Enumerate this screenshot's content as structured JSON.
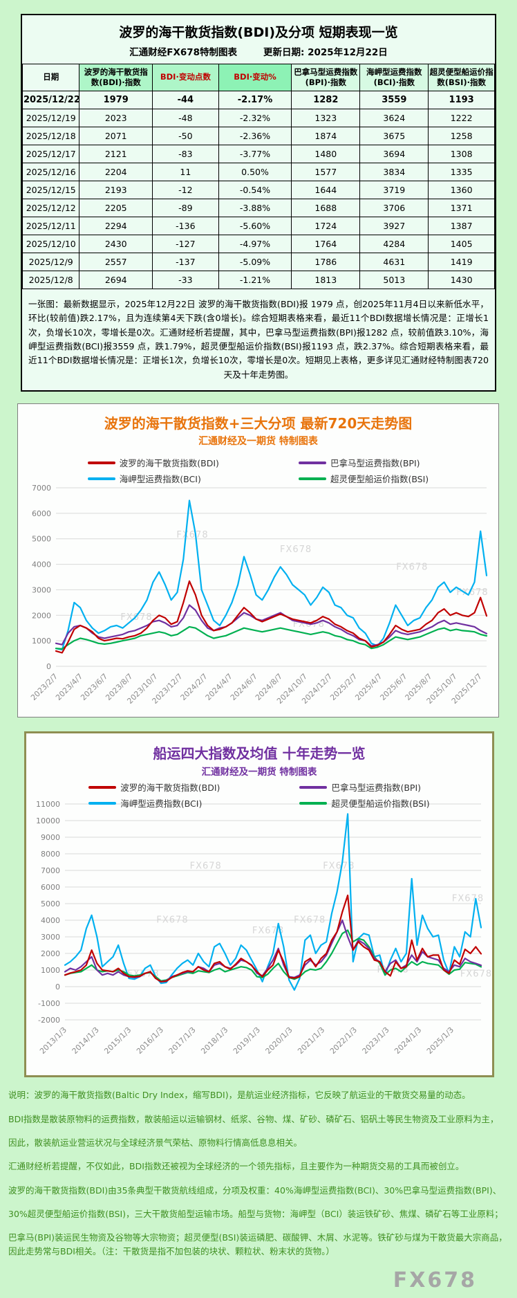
{
  "page": {
    "watermark": "FX678"
  },
  "report": {
    "title": "波罗的海干散货指数(BDI)及分项  短期表现一览",
    "source": "汇通财经FX678特制图表",
    "update_date": "更新日期: 2025年12月22日",
    "columns": [
      "日期",
      "波罗的海干散货指数(BDI)·指数",
      "BDI·变动点数",
      "BDI·变动%",
      "巴拿马型运费指数(BPI)·指数",
      "海岬型运费指数(BCI)·指数",
      "超灵便型船运价指数(BSI)·指数"
    ],
    "rows": [
      [
        "2025/12/22",
        "1979",
        "-44",
        "-2.17%",
        "1282",
        "3559",
        "1193"
      ],
      [
        "2025/12/19",
        "2023",
        "-48",
        "-2.32%",
        "1323",
        "3624",
        "1222"
      ],
      [
        "2025/12/18",
        "2071",
        "-50",
        "-2.36%",
        "1874",
        "3675",
        "1258"
      ],
      [
        "2025/12/17",
        "2121",
        "-83",
        "-3.77%",
        "1480",
        "3694",
        "1308"
      ],
      [
        "2025/12/16",
        "2204",
        "11",
        "0.50%",
        "1577",
        "3834",
        "1335"
      ],
      [
        "2025/12/15",
        "2193",
        "-12",
        "-0.54%",
        "1644",
        "3719",
        "1360"
      ],
      [
        "2025/12/12",
        "2205",
        "-89",
        "-3.88%",
        "1688",
        "3706",
        "1371"
      ],
      [
        "2025/12/11",
        "2294",
        "-136",
        "-5.60%",
        "1724",
        "3927",
        "1387"
      ],
      [
        "2025/12/10",
        "2430",
        "-127",
        "-4.97%",
        "1764",
        "4284",
        "1405"
      ],
      [
        "2025/12/9",
        "2557",
        "-137",
        "-5.09%",
        "1786",
        "4631",
        "1419"
      ],
      [
        "2025/12/8",
        "2694",
        "-33",
        "-1.21%",
        "1813",
        "5013",
        "1430"
      ]
    ],
    "summary": "一张图：最新数据显示，2025年12月22日 波罗的海干散货指数(BDI)报 1979 点，创2025年11月4日以来新低水平，环比(较前值)跌2.17%，且为连续第4天下跌(含0增长)。综合短期表格来看，最近11个BDI数据增长情况是：正增长1次，负增长10次，零增长是0次。汇通财经析若提醒，其中，巴拿马型运费指数(BPI)报1282 点，较前值跌3.10%，海岬型运费指数(BCI)报3559 点，跌1.79%，超灵便型船运价指数(BSI)报1193 点，跌2.37%。综合短期表格来看，最近11个BDI数据增长情况是：正增长1次，负增长10次，零增长是0次。短期见上表格，更多详见汇通财经特制图表720天及十年走势图。"
  },
  "chart_data": [
    {
      "type": "line",
      "title": "波罗的海干散货指数+三大分项  最新720天走势图",
      "subtitle": "汇通财经及一期货  特制图表",
      "ylim": [
        0,
        7000
      ],
      "ystep": 1000,
      "grid": true,
      "legend_position": "top-center",
      "x_tick_span": 0.985,
      "x_ticks": [
        "2023/2/7",
        "2023/4/7",
        "2023/6/7",
        "2023/8/7",
        "2023/10/7",
        "2023/12/7",
        "2024/2/7",
        "2024/4/7",
        "2024/6/7",
        "2024/8/7",
        "2024/10/7",
        "2024/12/7",
        "2025/2/7",
        "2025/4/7",
        "2025/6/7",
        "2025/8/7",
        "2025/10/7",
        "2025/12/7"
      ],
      "watermarks": [
        [
          0.28,
          0.28
        ],
        [
          0.52,
          0.36
        ],
        [
          0.79,
          0.46
        ],
        [
          0.15,
          0.74
        ],
        [
          0.55,
          0.78
        ],
        [
          0.93,
          0.6
        ]
      ],
      "series": [
        {
          "name": "波罗的海干散货指数(BDI)",
          "code": "BDI",
          "color": "#c00000",
          "values": [
            600,
            530,
            950,
            1450,
            1600,
            1500,
            1350,
            1100,
            1000,
            1050,
            1100,
            1080,
            1150,
            1200,
            1300,
            1500,
            1800,
            2000,
            1900,
            1650,
            1750,
            2500,
            3340,
            2800,
            2000,
            1600,
            1400,
            1450,
            1550,
            1700,
            2000,
            2300,
            2100,
            1850,
            1750,
            1850,
            1950,
            2050,
            1950,
            1850,
            1800,
            1750,
            1700,
            1800,
            1950,
            1850,
            1650,
            1550,
            1400,
            1300,
            1100,
            1000,
            760,
            820,
            950,
            1250,
            1600,
            1450,
            1350,
            1400,
            1450,
            1650,
            1800,
            2100,
            2250,
            2000,
            2100,
            2000,
            1950,
            2100,
            2694,
            1979
          ]
        },
        {
          "name": "巴拿马型运费指数(BPI)",
          "code": "BPI",
          "color": "#7030a0",
          "values": [
            900,
            850,
            1300,
            1550,
            1600,
            1500,
            1300,
            1150,
            1100,
            1150,
            1200,
            1250,
            1350,
            1400,
            1500,
            1600,
            1750,
            1800,
            1700,
            1550,
            1600,
            1900,
            2400,
            2200,
            1800,
            1500,
            1400,
            1500,
            1550,
            1700,
            1900,
            2100,
            2000,
            1850,
            1800,
            1900,
            2000,
            2100,
            1950,
            1800,
            1750,
            1700,
            1650,
            1700,
            1800,
            1700,
            1550,
            1450,
            1300,
            1200,
            1050,
            1000,
            800,
            850,
            950,
            1150,
            1400,
            1300,
            1250,
            1300,
            1350,
            1450,
            1550,
            1700,
            1800,
            1650,
            1700,
            1650,
            1600,
            1550,
            1400,
            1282
          ]
        },
        {
          "name": "海岬型运费指数(BCI)",
          "code": "BCI",
          "color": "#00b0f0",
          "values": [
            700,
            650,
            1400,
            2500,
            2300,
            1800,
            1500,
            1300,
            1400,
            1550,
            1600,
            1500,
            1700,
            1900,
            2200,
            2600,
            3300,
            3700,
            3200,
            2600,
            2900,
            4200,
            6500,
            5200,
            3000,
            2400,
            1800,
            1600,
            2000,
            2500,
            3200,
            4300,
            3600,
            2800,
            2600,
            3000,
            3500,
            3900,
            3600,
            3200,
            3000,
            2800,
            2400,
            2700,
            3100,
            2900,
            2400,
            2300,
            2000,
            1900,
            1500,
            1300,
            900,
            800,
            1100,
            1700,
            2400,
            2000,
            1600,
            1800,
            1900,
            2300,
            2600,
            3100,
            3300,
            2900,
            3100,
            2950,
            2800,
            3300,
            5300,
            3559
          ]
        },
        {
          "name": "超灵便型船运价指数(BSI)",
          "code": "BSI",
          "color": "#00b050",
          "values": [
            700,
            680,
            850,
            1000,
            1100,
            1050,
            980,
            900,
            870,
            900,
            950,
            1000,
            1050,
            1100,
            1200,
            1250,
            1300,
            1350,
            1300,
            1200,
            1250,
            1400,
            1550,
            1500,
            1350,
            1200,
            1100,
            1150,
            1200,
            1300,
            1400,
            1500,
            1450,
            1400,
            1350,
            1400,
            1450,
            1500,
            1450,
            1400,
            1350,
            1300,
            1250,
            1300,
            1350,
            1300,
            1200,
            1150,
            1050,
            1000,
            900,
            850,
            700,
            750,
            850,
            1000,
            1150,
            1100,
            1050,
            1100,
            1150,
            1250,
            1350,
            1450,
            1500,
            1400,
            1450,
            1400,
            1380,
            1350,
            1250,
            1193
          ]
        }
      ]
    },
    {
      "type": "line",
      "title": "船运四大指数及均值 十年走势一览",
      "subtitle": "汇通财经及一期货 特制图表",
      "ylim": [
        -2000,
        11000
      ],
      "ystep": 1000,
      "grid": true,
      "legend_position": "top-center",
      "x_tick_span": 0.93,
      "x_ticks": [
        "2013/1/3",
        "2014/1/3",
        "2015/1/3",
        "2016/1/3",
        "2017/1/3",
        "2018/1/3",
        "2019/1/3",
        "2020/1/3",
        "2021/1/3",
        "2022/1/3",
        "2023/1/3",
        "2024/1/3",
        "2025/1/3"
      ],
      "watermarks": [
        [
          0.3,
          0.3
        ],
        [
          0.62,
          0.3
        ],
        [
          0.22,
          0.55
        ],
        [
          0.45,
          0.6
        ],
        [
          0.55,
          0.55
        ],
        [
          0.93,
          0.45
        ],
        [
          0.15,
          0.8
        ],
        [
          0.75,
          0.78
        ],
        [
          0.95,
          0.8
        ]
      ],
      "series": [
        {
          "name": "波罗的海干散货指数(BDI)",
          "code": "BDI",
          "color": "#c00000",
          "values": [
            700,
            820,
            900,
            1000,
            1300,
            2200,
            1400,
            1000,
            950,
            900,
            1100,
            800,
            600,
            590,
            630,
            800,
            900,
            500,
            300,
            330,
            550,
            700,
            850,
            950,
            900,
            1200,
            1000,
            900,
            1400,
            1500,
            1200,
            1050,
            1350,
            1700,
            1500,
            1270,
            900,
            600,
            1000,
            1300,
            2200,
            1500,
            550,
            520,
            600,
            1500,
            1700,
            1200,
            1700,
            2000,
            2800,
            3300,
            4500,
            5500,
            2200,
            2700,
            2400,
            2200,
            1600,
            1500,
            900,
            650,
            1500,
            1100,
            1200,
            2800,
            1600,
            2300,
            1800,
            1900,
            1900,
            1000,
            800,
            1600,
            1350,
            2250,
            2000,
            2400,
            1979
          ]
        },
        {
          "name": "巴拿马型运费指数(BPI)",
          "code": "BPI",
          "color": "#7030a0",
          "values": [
            900,
            1100,
            1000,
            1200,
            1500,
            1800,
            1000,
            700,
            800,
            700,
            900,
            700,
            600,
            550,
            600,
            800,
            900,
            500,
            300,
            350,
            600,
            700,
            800,
            900,
            900,
            1200,
            1100,
            900,
            1300,
            1400,
            1200,
            1100,
            1300,
            1600,
            1500,
            1300,
            800,
            650,
            1100,
            1600,
            2300,
            1300,
            600,
            550,
            700,
            1300,
            1600,
            1300,
            1500,
            1900,
            2600,
            3300,
            4000,
            3000,
            2200,
            2800,
            2600,
            2300,
            1700,
            1500,
            900,
            1400,
            1600,
            1100,
            1300,
            1900,
            1500,
            2100,
            1800,
            1700,
            1600,
            1100,
            900,
            1300,
            1200,
            1700,
            1500,
            1400,
            1282
          ]
        },
        {
          "name": "海岬型运费指数(BCI)",
          "code": "BCI",
          "color": "#00b0f0",
          "values": [
            1300,
            1500,
            1800,
            2200,
            3500,
            4300,
            3000,
            1200,
            1500,
            1800,
            2500,
            1400,
            500,
            450,
            600,
            1100,
            1300,
            600,
            200,
            250,
            700,
            1100,
            1400,
            1600,
            1300,
            2000,
            1500,
            1200,
            2400,
            2600,
            2000,
            1300,
            1700,
            2500,
            2200,
            1600,
            1000,
            300,
            1200,
            2000,
            3800,
            2400,
            400,
            -200,
            500,
            2800,
            3100,
            2000,
            2500,
            2700,
            4400,
            5700,
            7500,
            10400,
            1500,
            2900,
            3200,
            3100,
            1800,
            1900,
            700,
            1600,
            2300,
            1500,
            2000,
            6500,
            2500,
            4300,
            3500,
            3000,
            3100,
            1600,
            800,
            2400,
            1800,
            3300,
            3000,
            5300,
            3559
          ]
        },
        {
          "name": "超灵便型船运价指数(BSI)",
          "code": "BSI",
          "color": "#00b050",
          "values": [
            700,
            800,
            850,
            900,
            1100,
            1300,
            1000,
            900,
            950,
            900,
            1000,
            900,
            700,
            650,
            700,
            800,
            850,
            600,
            350,
            400,
            550,
            650,
            750,
            850,
            800,
            950,
            900,
            850,
            1000,
            1100,
            900,
            1000,
            1100,
            1200,
            1150,
            1000,
            600,
            550,
            750,
            1100,
            1400,
            900,
            550,
            450,
            600,
            900,
            1050,
            1000,
            1100,
            1500,
            2000,
            2600,
            3200,
            3400,
            2700,
            2900,
            2800,
            2400,
            1800,
            1400,
            700,
            1000,
            1100,
            900,
            1200,
            1500,
            1300,
            1500,
            1400,
            1350,
            1300,
            1000,
            750,
            1000,
            1050,
            1450,
            1400,
            1350,
            1193
          ]
        }
      ]
    }
  ],
  "footer": {
    "lines": [
      "说明：波罗的海干散货指数(Baltic Dry Index，缩写BDI)，是航运业经济指标，它反映了航运业的干散货交易量的动态。",
      "BDI指数是散装原物料的运费指数，散装船运以运输钢材、纸浆、谷物、煤、矿砂、磷矿石、铝矾土等民生物资及工业原料为主，",
      "因此，散装航运业营运状况与全球经济景气荣枯、原物料行情高低息息相关。",
      "汇通财经析若提醒，不仅如此，BDI指数还被视为全球经济的一个领先指标，且主要作为一种期货交易的工具而被创立。",
      "波罗的海干散货指数(BDI)由35条典型干散货航线组成，分项及权重：40%海岬型运费指数(BCI)、30%巴拿马型运费指数(BPI)、",
      "30%超灵便型船运价指数(BSI)，三大干散货船型运输市场。船型与货物：海岬型（BCI）装运铁矿砂、焦煤、磷矿石等工业原料；",
      "巴拿马(BPI)装运民生物资及谷物等大宗物资；超灵便型(BSI)装运磷肥、碳酸钾、木屑、水泥等。铁矿砂与煤为干散货最大宗商品，因此走势常与BDI相关。（注：干散货是指不加包装的块状、颗粒状、粉末状的货物。）"
    ]
  }
}
